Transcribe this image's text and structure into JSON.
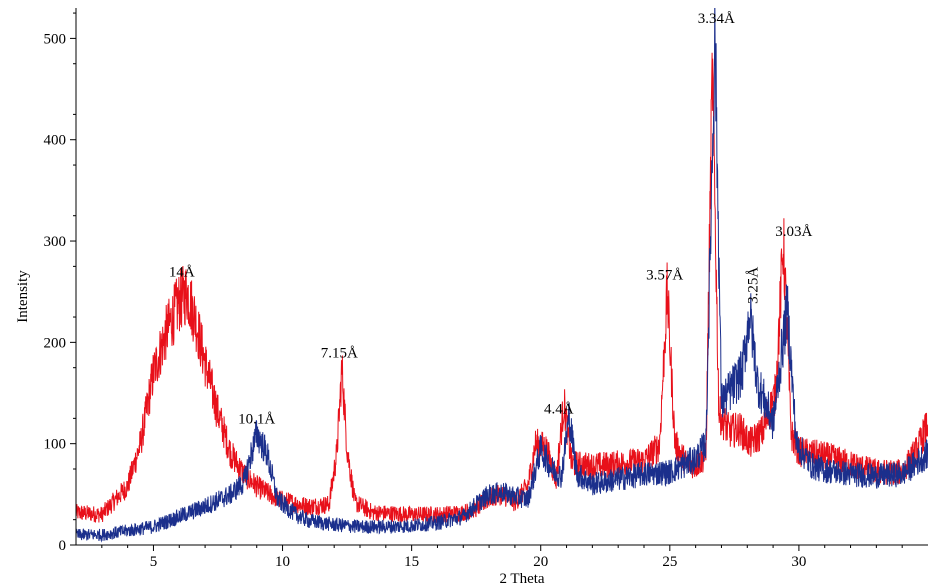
{
  "chart_data": {
    "type": "line",
    "title": "",
    "xlabel": "2 Theta",
    "ylabel": "Intensity",
    "xlim": [
      2,
      35
    ],
    "ylim": [
      0,
      530
    ],
    "xticks": [
      5,
      10,
      15,
      20,
      25,
      30
    ],
    "yticks": [
      0,
      100,
      200,
      300,
      400,
      500
    ],
    "grid": false,
    "legend": "none",
    "series": [
      {
        "color": "#e8101a",
        "points": [
          [
            2,
            32
          ],
          [
            3,
            30
          ],
          [
            4,
            58
          ],
          [
            4.5,
            100
          ],
          [
            5,
            170
          ],
          [
            5.5,
            210
          ],
          [
            6,
            240
          ],
          [
            6.3,
            250
          ],
          [
            6.6,
            225
          ],
          [
            7,
            180
          ],
          [
            7.5,
            130
          ],
          [
            8,
            90
          ],
          [
            8.5,
            70
          ],
          [
            9,
            58
          ],
          [
            9.5,
            50
          ],
          [
            10,
            44
          ],
          [
            11,
            38
          ],
          [
            11.8,
            40
          ],
          [
            12.1,
            90
          ],
          [
            12.3,
            175
          ],
          [
            12.5,
            95
          ],
          [
            12.8,
            42
          ],
          [
            13.5,
            32
          ],
          [
            15,
            30
          ],
          [
            16,
            30
          ],
          [
            17,
            32
          ],
          [
            17.5,
            36
          ],
          [
            18,
            46
          ],
          [
            18.5,
            50
          ],
          [
            19,
            42
          ],
          [
            19.5,
            58
          ],
          [
            19.8,
            100
          ],
          [
            20.2,
            96
          ],
          [
            20.6,
            65
          ],
          [
            20.9,
            140
          ],
          [
            21.2,
            80
          ],
          [
            22,
            78
          ],
          [
            23,
            80
          ],
          [
            24,
            83
          ],
          [
            24.6,
            98
          ],
          [
            24.9,
            250
          ],
          [
            25.2,
            100
          ],
          [
            25.6,
            82
          ],
          [
            26,
            78
          ],
          [
            26.4,
            88
          ],
          [
            26.65,
            470
          ],
          [
            26.9,
            130
          ],
          [
            27.3,
            112
          ],
          [
            27.7,
            115
          ],
          [
            28.1,
            100
          ],
          [
            28.6,
            112
          ],
          [
            29.1,
            150
          ],
          [
            29.4,
            300
          ],
          [
            29.7,
            110
          ],
          [
            30,
            92
          ],
          [
            31,
            88
          ],
          [
            32,
            80
          ],
          [
            33,
            72
          ],
          [
            34,
            72
          ],
          [
            34.6,
            95
          ],
          [
            35,
            120
          ]
        ]
      },
      {
        "color": "#1b2f8c",
        "points": [
          [
            2,
            10
          ],
          [
            3,
            10
          ],
          [
            4,
            14
          ],
          [
            5,
            18
          ],
          [
            6,
            28
          ],
          [
            7,
            38
          ],
          [
            8,
            50
          ],
          [
            8.5,
            62
          ],
          [
            9,
            110
          ],
          [
            9.4,
            90
          ],
          [
            9.8,
            45
          ],
          [
            10.5,
            30
          ],
          [
            11,
            24
          ],
          [
            12,
            20
          ],
          [
            13,
            18
          ],
          [
            14,
            18
          ],
          [
            15,
            19
          ],
          [
            16,
            22
          ],
          [
            17,
            28
          ],
          [
            17.5,
            40
          ],
          [
            18,
            50
          ],
          [
            18.5,
            52
          ],
          [
            19,
            48
          ],
          [
            19.5,
            45
          ],
          [
            20,
            95
          ],
          [
            20.4,
            76
          ],
          [
            20.8,
            68
          ],
          [
            21.1,
            128
          ],
          [
            21.4,
            70
          ],
          [
            22,
            60
          ],
          [
            23,
            65
          ],
          [
            24,
            70
          ],
          [
            25,
            72
          ],
          [
            26,
            85
          ],
          [
            26.4,
            100
          ],
          [
            26.75,
            505
          ],
          [
            27,
            140
          ],
          [
            27.4,
            155
          ],
          [
            27.8,
            170
          ],
          [
            28.1,
            230
          ],
          [
            28.4,
            160
          ],
          [
            29,
            120
          ],
          [
            29.55,
            235
          ],
          [
            29.9,
            100
          ],
          [
            30.5,
            78
          ],
          [
            31,
            74
          ],
          [
            32,
            70
          ],
          [
            33,
            68
          ],
          [
            34,
            70
          ],
          [
            35,
            90
          ]
        ]
      }
    ],
    "annotations": [
      {
        "text": "14Å",
        "x": 6.1,
        "y": 265
      },
      {
        "text": "10.1Å",
        "x": 9.0,
        "y": 120
      },
      {
        "text": "7.15Å",
        "x": 12.2,
        "y": 185
      },
      {
        "text": "4.4Å",
        "x": 20.7,
        "y": 130
      },
      {
        "text": "3.57Å",
        "x": 24.8,
        "y": 262
      },
      {
        "text": "3.34Å",
        "x": 26.8,
        "y": 515
      },
      {
        "text": "3.03Å",
        "x": 29.8,
        "y": 305
      },
      {
        "text": "3.25Å",
        "x": 28.2,
        "y": 238,
        "rotate": true
      }
    ]
  }
}
